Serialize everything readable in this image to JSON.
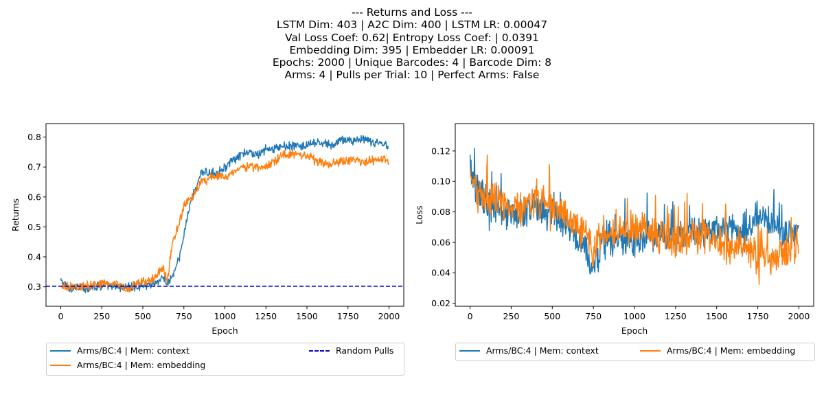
{
  "figure": {
    "title_lines": [
      "--- Returns and Loss ---",
      "LSTM Dim: 403 | A2C Dim: 400 | LSTM LR: 0.00047",
      "Val Loss Coef: 0.62| Entropy Loss Coef: | 0.0391",
      "Embedding Dim: 395 | Embedder LR: 0.00091",
      "Epochs: 2000 | Unique Barcodes: 4 | Barcode Dim: 8",
      "Arms: 4 | Pulls per Trial: 10 | Perfect Arms: False"
    ]
  },
  "colors": {
    "context": "#1f77b4",
    "embedding": "#ff7f0e",
    "random": "#0000cc"
  },
  "chart_data": [
    {
      "type": "line",
      "xlabel": "Epoch",
      "ylabel": "Returns",
      "xlim": [
        -90,
        2090
      ],
      "ylim": [
        0.235,
        0.845
      ],
      "xticks": [
        0,
        250,
        500,
        750,
        1000,
        1250,
        1500,
        1750,
        2000
      ],
      "yticks": [
        0.3,
        0.4,
        0.5,
        0.6,
        0.7,
        0.8
      ],
      "grid": false,
      "legend_position": "below",
      "legend": [
        "Arms/BC:4 | Mem: context",
        "Arms/BC:4 | Mem: embedding",
        "Random Pulls"
      ],
      "series": [
        {
          "name": "Arms/BC:4 | Mem: context",
          "x": [
            0,
            50,
            100,
            150,
            200,
            250,
            300,
            350,
            400,
            450,
            500,
            550,
            600,
            625,
            650,
            675,
            700,
            725,
            750,
            775,
            800,
            825,
            850,
            900,
            950,
            1000,
            1050,
            1100,
            1150,
            1200,
            1250,
            1300,
            1350,
            1400,
            1450,
            1500,
            1550,
            1600,
            1650,
            1700,
            1750,
            1800,
            1850,
            1900,
            1950,
            2000
          ],
          "y": [
            0.32,
            0.295,
            0.3,
            0.295,
            0.3,
            0.305,
            0.3,
            0.3,
            0.3,
            0.3,
            0.305,
            0.31,
            0.32,
            0.33,
            0.31,
            0.33,
            0.36,
            0.4,
            0.47,
            0.55,
            0.6,
            0.63,
            0.68,
            0.68,
            0.68,
            0.7,
            0.72,
            0.74,
            0.75,
            0.74,
            0.76,
            0.76,
            0.77,
            0.77,
            0.77,
            0.77,
            0.78,
            0.78,
            0.77,
            0.79,
            0.79,
            0.79,
            0.79,
            0.78,
            0.78,
            0.77
          ]
        },
        {
          "name": "Arms/BC:4 | Mem: embedding",
          "x": [
            0,
            50,
            100,
            150,
            200,
            250,
            300,
            350,
            400,
            450,
            500,
            550,
            600,
            625,
            650,
            675,
            700,
            725,
            750,
            775,
            800,
            825,
            850,
            900,
            950,
            1000,
            1050,
            1100,
            1150,
            1200,
            1250,
            1300,
            1350,
            1400,
            1450,
            1500,
            1550,
            1600,
            1650,
            1700,
            1750,
            1800,
            1850,
            1900,
            1950,
            2000
          ],
          "y": [
            0.3,
            0.3,
            0.3,
            0.3,
            0.31,
            0.31,
            0.31,
            0.31,
            0.29,
            0.31,
            0.32,
            0.32,
            0.35,
            0.36,
            0.32,
            0.43,
            0.48,
            0.52,
            0.57,
            0.59,
            0.6,
            0.62,
            0.65,
            0.66,
            0.67,
            0.67,
            0.68,
            0.7,
            0.7,
            0.7,
            0.7,
            0.72,
            0.74,
            0.74,
            0.74,
            0.74,
            0.72,
            0.71,
            0.71,
            0.72,
            0.72,
            0.72,
            0.72,
            0.72,
            0.72,
            0.72
          ]
        },
        {
          "name": "Random Pulls",
          "style": "dashed",
          "x": [
            -90,
            2090
          ],
          "y": [
            0.302,
            0.302
          ]
        }
      ]
    },
    {
      "type": "line",
      "xlabel": "Epoch",
      "ylabel": "Loss",
      "xlim": [
        -90,
        2090
      ],
      "ylim": [
        0.018,
        0.138
      ],
      "xticks": [
        0,
        250,
        500,
        750,
        1000,
        1250,
        1500,
        1750,
        2000
      ],
      "yticks": [
        0.02,
        0.04,
        0.06,
        0.08,
        0.1,
        0.12
      ],
      "grid": false,
      "legend_position": "below",
      "legend": [
        "Arms/BC:4 | Mem: context",
        "Arms/BC:4 | Mem: embedding"
      ],
      "series": [
        {
          "name": "Arms/BC:4 | Mem: context",
          "x": [
            0,
            25,
            50,
            100,
            150,
            200,
            250,
            300,
            350,
            400,
            450,
            500,
            550,
            600,
            650,
            700,
            725,
            750,
            775,
            800,
            850,
            900,
            950,
            1000,
            1050,
            1100,
            1150,
            1200,
            1250,
            1300,
            1350,
            1400,
            1450,
            1500,
            1550,
            1600,
            1650,
            1700,
            1750,
            1800,
            1850,
            1900,
            1950,
            2000
          ],
          "y": [
            0.115,
            0.1,
            0.092,
            0.085,
            0.085,
            0.08,
            0.08,
            0.08,
            0.082,
            0.085,
            0.08,
            0.08,
            0.075,
            0.07,
            0.06,
            0.055,
            0.045,
            0.04,
            0.05,
            0.06,
            0.062,
            0.06,
            0.06,
            0.062,
            0.062,
            0.063,
            0.063,
            0.062,
            0.065,
            0.065,
            0.067,
            0.067,
            0.065,
            0.068,
            0.07,
            0.07,
            0.068,
            0.072,
            0.078,
            0.075,
            0.073,
            0.068,
            0.066,
            0.065
          ]
        },
        {
          "name": "Arms/BC:4 | Mem: embedding",
          "x": [
            0,
            25,
            50,
            100,
            150,
            200,
            250,
            300,
            350,
            400,
            450,
            500,
            550,
            600,
            650,
            700,
            725,
            750,
            775,
            800,
            850,
            900,
            950,
            1000,
            1050,
            1100,
            1150,
            1200,
            1250,
            1300,
            1350,
            1400,
            1450,
            1500,
            1550,
            1600,
            1650,
            1700,
            1750,
            1800,
            1850,
            1900,
            1950,
            2000
          ],
          "y": [
            0.1,
            0.095,
            0.09,
            0.088,
            0.088,
            0.085,
            0.085,
            0.082,
            0.085,
            0.085,
            0.085,
            0.082,
            0.08,
            0.075,
            0.07,
            0.065,
            0.06,
            0.055,
            0.06,
            0.065,
            0.065,
            0.066,
            0.07,
            0.068,
            0.068,
            0.065,
            0.065,
            0.063,
            0.063,
            0.063,
            0.065,
            0.065,
            0.063,
            0.06,
            0.058,
            0.055,
            0.055,
            0.055,
            0.05,
            0.048,
            0.05,
            0.052,
            0.055,
            0.06
          ]
        }
      ]
    }
  ]
}
